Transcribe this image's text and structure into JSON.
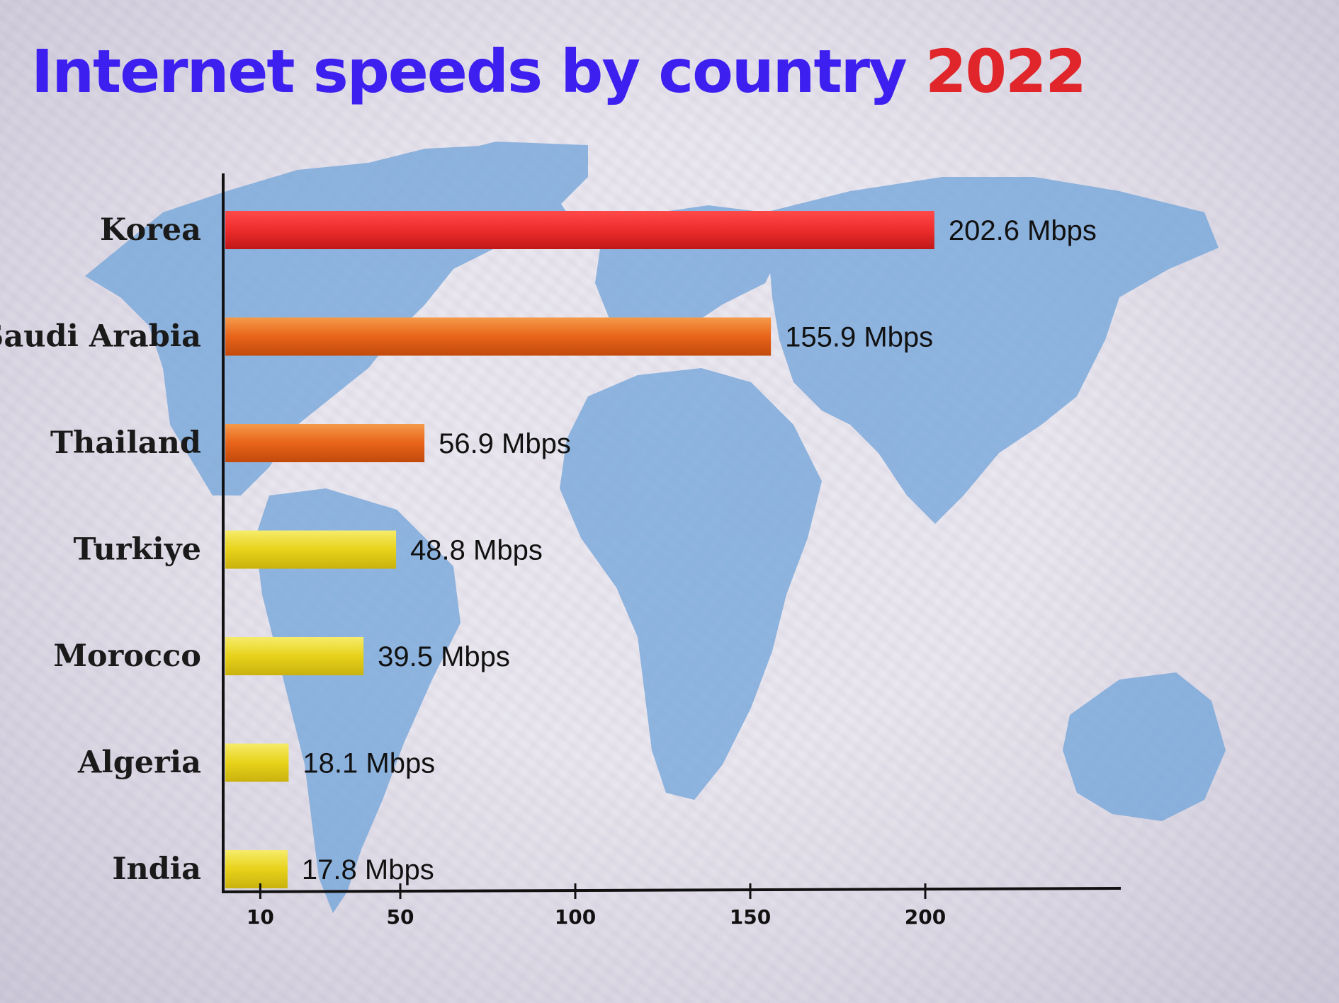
{
  "title": {
    "main": "Internet speeds by country",
    "year": "2022"
  },
  "colors": {
    "title_main": "#3d1ff0",
    "title_year": "#e0262a",
    "map": "#6fa3d9",
    "map_shadow": "#7a7bb8",
    "bar_top": "#ee2c2c",
    "bar_mid": "#e8641a",
    "bar_low": "#e8d21a",
    "axis": "#111111"
  },
  "chart_data": {
    "type": "bar",
    "orientation": "horizontal",
    "categories": [
      "Korea",
      "Saudi Arabia",
      "Thailand",
      "Turkiye",
      "Morocco",
      "Algeria",
      "India"
    ],
    "values": [
      202.6,
      155.9,
      56.9,
      48.8,
      39.5,
      18.1,
      17.8
    ],
    "value_labels": [
      "202.6 Mbps",
      "155.9 Mbps",
      "56.9 Mbps",
      "48.8 Mbps",
      "39.5 Mbps",
      "18.1 Mbps",
      "17.8 Mbps"
    ],
    "bar_colors": [
      "#ee2c2c",
      "#e8641a",
      "#e8641a",
      "#e8d21a",
      "#e8d21a",
      "#e8d21a",
      "#e8d21a"
    ],
    "xticks": [
      "10",
      "50",
      "100",
      "150",
      "200"
    ],
    "xtick_values": [
      10,
      50,
      100,
      150,
      200
    ],
    "grid": false
  }
}
